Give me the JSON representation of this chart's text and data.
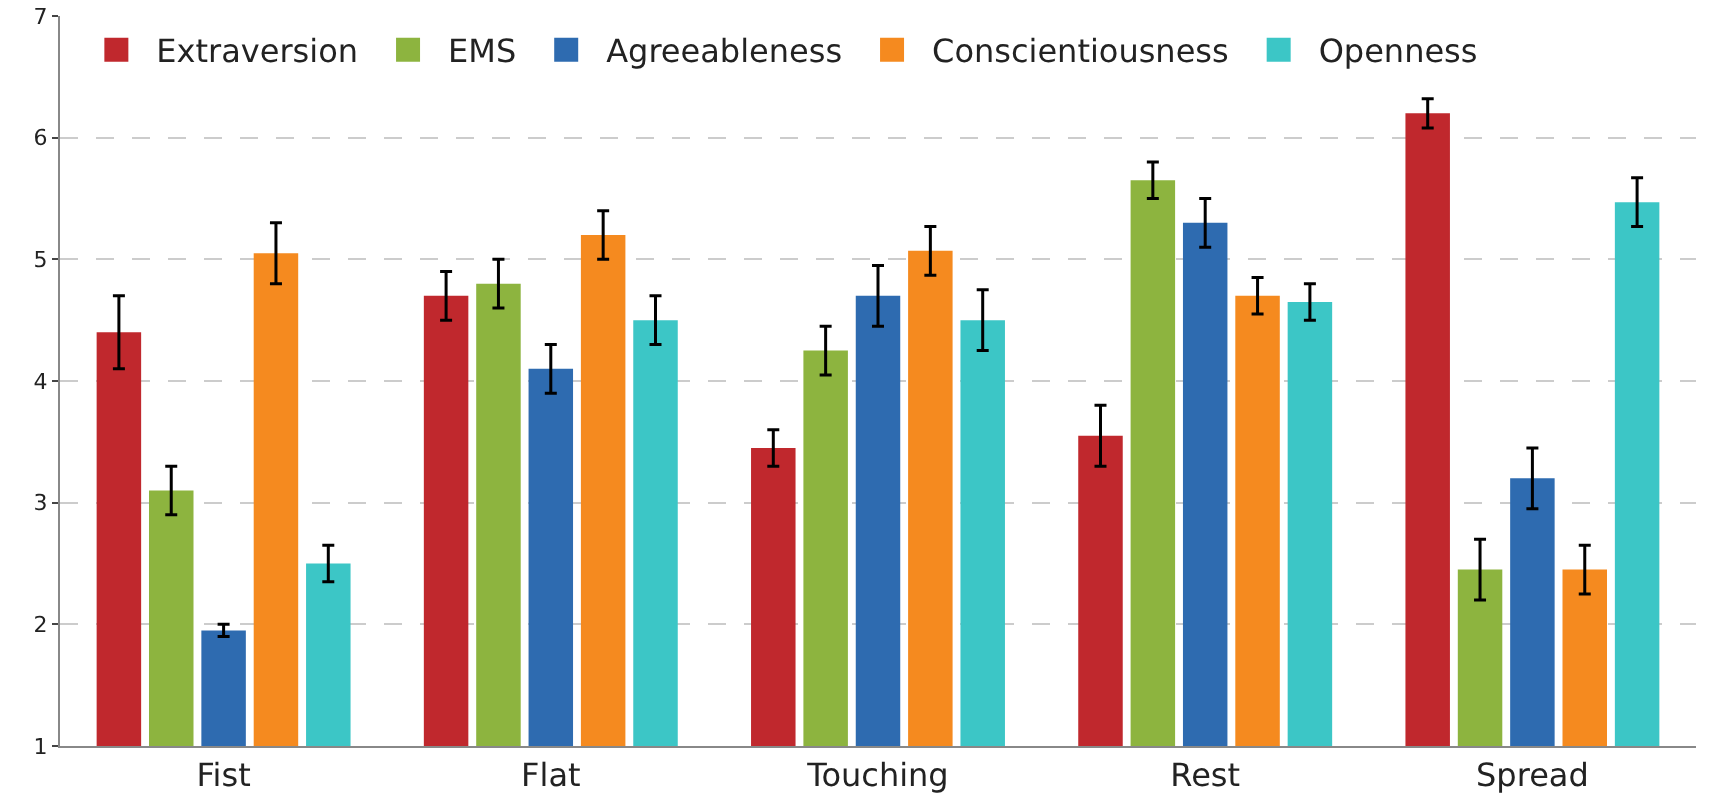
{
  "chart_data": {
    "type": "bar",
    "categories": [
      "Fist",
      "Flat",
      "Touching",
      "Rest",
      "Spread"
    ],
    "series": [
      {
        "name": "Extraversion",
        "color": "#c0282d",
        "values": [
          4.4,
          4.7,
          3.45,
          3.55,
          6.2
        ],
        "errors": [
          0.3,
          0.2,
          0.15,
          0.25,
          0.12
        ]
      },
      {
        "name": "EMS",
        "color": "#8db43f",
        "values": [
          3.1,
          4.8,
          4.25,
          5.65,
          2.45
        ],
        "errors": [
          0.2,
          0.2,
          0.2,
          0.15,
          0.25
        ]
      },
      {
        "name": "Agreeableness",
        "color": "#2e6bb0",
        "values": [
          1.95,
          4.1,
          4.7,
          5.3,
          3.2
        ],
        "errors": [
          0.05,
          0.2,
          0.25,
          0.2,
          0.25
        ]
      },
      {
        "name": "Conscientiousness",
        "color": "#f58a1f",
        "values": [
          5.05,
          5.2,
          5.07,
          4.7,
          2.45
        ],
        "errors": [
          0.25,
          0.2,
          0.2,
          0.15,
          0.2
        ]
      },
      {
        "name": "Openness",
        "color": "#3cc6c6",
        "values": [
          2.5,
          4.5,
          4.5,
          4.65,
          5.47
        ],
        "errors": [
          0.15,
          0.2,
          0.25,
          0.15,
          0.2
        ]
      }
    ],
    "ylim": [
      1,
      7
    ],
    "yticks": [
      1,
      2,
      3,
      4,
      5,
      6,
      7
    ],
    "grid": "y",
    "legend": "top left"
  }
}
